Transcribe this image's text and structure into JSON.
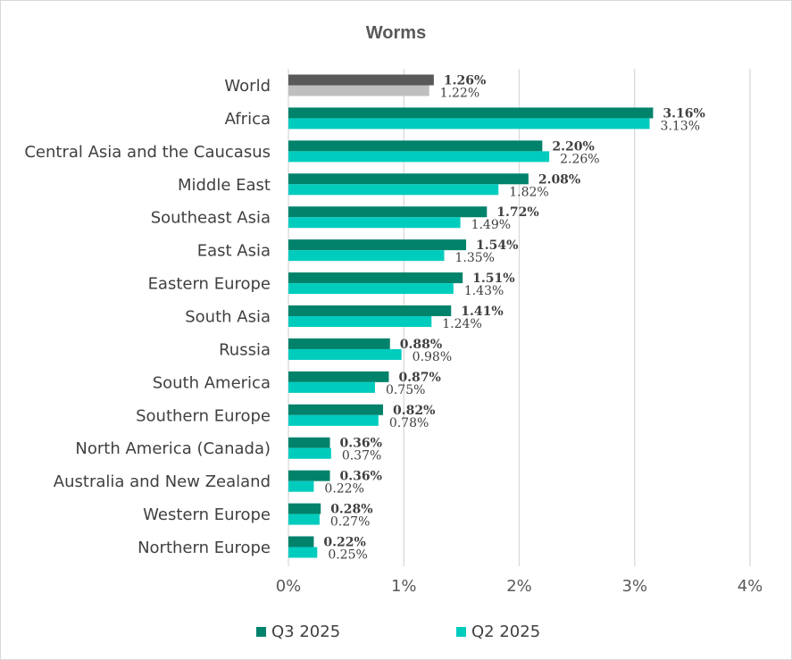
{
  "colors": {
    "q3": "#00826B",
    "q2": "#00CCBE",
    "world_q3": "#595959",
    "world_q2": "#BFBFBF",
    "grid": "#d9d9d9"
  },
  "chart_data": {
    "type": "bar",
    "orientation": "horizontal",
    "title": "Worms",
    "categories": [
      "World",
      "Africa",
      "Central Asia and the Caucasus",
      "Middle East",
      "Southeast Asia",
      "East Asia",
      "Eastern Europe",
      "South Asia",
      "Russia",
      "South America",
      "Southern Europe",
      "North America (Canada)",
      "Australia and New Zealand",
      "Western Europe",
      "Northern Europe"
    ],
    "series": [
      {
        "name": "Q3 2025",
        "values": [
          1.26,
          3.16,
          2.2,
          2.08,
          1.72,
          1.54,
          1.51,
          1.41,
          0.88,
          0.87,
          0.82,
          0.36,
          0.36,
          0.28,
          0.22
        ],
        "labels": [
          "1.26%",
          "3.16%",
          "2.20%",
          "2.08%",
          "1.72%",
          "1.54%",
          "1.51%",
          "1.41%",
          "0.88%",
          "0.87%",
          "0.82%",
          "0.36%",
          "0.36%",
          "0.28%",
          "0.22%"
        ]
      },
      {
        "name": "Q2 2025",
        "values": [
          1.22,
          3.13,
          2.26,
          1.82,
          1.49,
          1.35,
          1.43,
          1.24,
          0.98,
          0.75,
          0.78,
          0.37,
          0.22,
          0.27,
          0.25
        ],
        "labels": [
          "1.22%",
          "3.13%",
          "2.26%",
          "1.82%",
          "1.49%",
          "1.35%",
          "1.43%",
          "1.24%",
          "0.98%",
          "0.75%",
          "0.78%",
          "0.37%",
          "0.22%",
          "0.27%",
          "0.25%"
        ]
      }
    ],
    "xlim": [
      0,
      4
    ],
    "xticks": [
      0,
      1,
      2,
      3,
      4
    ],
    "xtick_labels": [
      "0%",
      "1%",
      "2%",
      "3%",
      "4%"
    ],
    "grid": true,
    "legend_position": "bottom"
  }
}
